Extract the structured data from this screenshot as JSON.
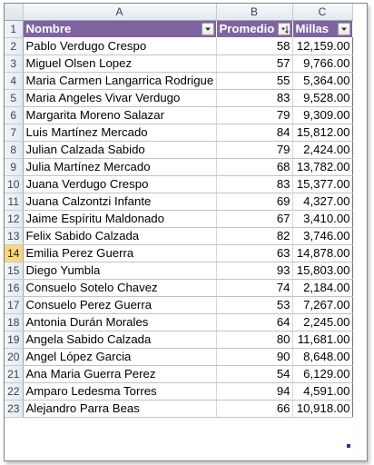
{
  "columns": [
    "A",
    "B",
    "C"
  ],
  "table": {
    "headers": [
      {
        "label": "Nombre",
        "filter": "dropdown"
      },
      {
        "label": "Promedio",
        "filter": "sorted-descending"
      },
      {
        "label": "Millas",
        "filter": "dropdown"
      }
    ],
    "rows": [
      {
        "num": "2",
        "nombre": "Pablo Verdugo Crespo",
        "promedio": "58",
        "millas": "12,159.00"
      },
      {
        "num": "3",
        "nombre": "Miguel Olsen Lopez",
        "promedio": "57",
        "millas": "9,766.00"
      },
      {
        "num": "4",
        "nombre": "Maria Carmen Langarrica Rodrigue",
        "promedio": "55",
        "millas": "5,364.00"
      },
      {
        "num": "5",
        "nombre": "Maria Angeles Vivar Verdugo",
        "promedio": "83",
        "millas": "9,528.00"
      },
      {
        "num": "6",
        "nombre": "Margarita Moreno Salazar",
        "promedio": "79",
        "millas": "9,309.00"
      },
      {
        "num": "7",
        "nombre": "Luis Martínez Mercado",
        "promedio": "84",
        "millas": "15,812.00"
      },
      {
        "num": "8",
        "nombre": "Julian Calzada Sabido",
        "promedio": "79",
        "millas": "2,424.00"
      },
      {
        "num": "9",
        "nombre": "Julia Martínez Mercado",
        "promedio": "68",
        "millas": "13,782.00"
      },
      {
        "num": "10",
        "nombre": "Juana Verdugo Crespo",
        "promedio": "83",
        "millas": "15,377.00"
      },
      {
        "num": "11",
        "nombre": "Juana Calzontzi Infante",
        "promedio": "69",
        "millas": "4,327.00"
      },
      {
        "num": "12",
        "nombre": "Jaime Espíritu Maldonado",
        "promedio": "67",
        "millas": "3,410.00"
      },
      {
        "num": "13",
        "nombre": "Felix Sabido Calzada",
        "promedio": "82",
        "millas": "3,746.00"
      },
      {
        "num": "14",
        "nombre": "Emilia Perez Guerra",
        "promedio": "63",
        "millas": "14,878.00"
      },
      {
        "num": "15",
        "nombre": "Diego Yumbla",
        "promedio": "93",
        "millas": "15,803.00"
      },
      {
        "num": "16",
        "nombre": "Consuelo Sotelo Chavez",
        "promedio": "74",
        "millas": "2,184.00"
      },
      {
        "num": "17",
        "nombre": "Consuelo Perez Guerra",
        "promedio": "53",
        "millas": "7,267.00"
      },
      {
        "num": "18",
        "nombre": "Antonia Durán Morales",
        "promedio": "64",
        "millas": "2,245.00"
      },
      {
        "num": "19",
        "nombre": "Angela Sabido Calzada",
        "promedio": "80",
        "millas": "11,681.00"
      },
      {
        "num": "20",
        "nombre": "Angel López Garcia",
        "promedio": "90",
        "millas": "8,648.00"
      },
      {
        "num": "21",
        "nombre": "Ana Maria Guerra Perez",
        "promedio": "54",
        "millas": "6,129.00"
      },
      {
        "num": "22",
        "nombre": "Amparo Ledesma Torres",
        "promedio": "94",
        "millas": "4,591.00"
      },
      {
        "num": "23",
        "nombre": "Alejandro Parra Beas",
        "promedio": "66",
        "millas": "10,918.00"
      }
    ]
  },
  "header_row_num": "1",
  "active_row": "14",
  "colors": {
    "table_header": "#8064a2",
    "row_border": "#c8bcd9",
    "active_row_header": "#f8d77a"
  }
}
